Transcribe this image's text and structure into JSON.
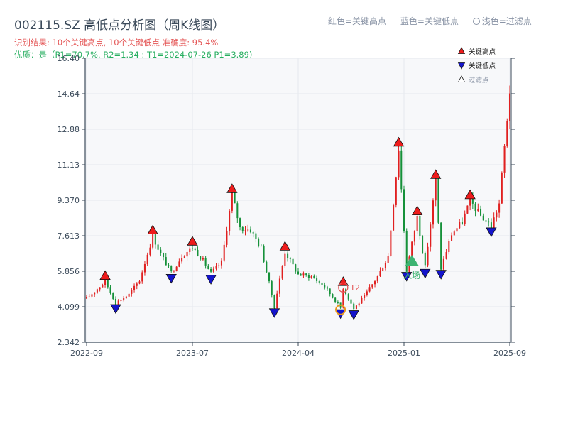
{
  "header": {
    "title": "002115.SZ 高低点分析图（周K线图）",
    "result_line": "识别结果: 10个关键高点, 10个关键低点   准确度: 95.4%",
    "quality_line": "优质：是（P1=70.7%, R2=1.34 ; T1=2024-07-26 P1=3.89)"
  },
  "legend_top": {
    "red": "红色=关键高点",
    "blue": "蓝色=关键低点",
    "light": "浅色=过滤点"
  },
  "legend_inner": {
    "high": "关键高点",
    "low": "关键低点",
    "filtered": "过滤点"
  },
  "annotations": {
    "t2": "T2",
    "entry": "入场"
  },
  "colors": {
    "up": "#e02020",
    "down": "#16913a",
    "high_marker": "#ee1c1c",
    "low_marker": "#1414cc",
    "entry": "#3cb371",
    "t2": "#e45656",
    "orange_ring": "#e8951c",
    "grid": "#e6e9ee",
    "plot_bg": "#f7f8fa"
  },
  "chart_data": {
    "type": "candlestick",
    "title": "002115.SZ 高低点分析图（周K线图）",
    "xlabel": "",
    "ylabel": "",
    "y_ticks": [
      "2.342",
      "4.099",
      "5.856",
      "7.613",
      "9.370",
      "11.13",
      "12.88",
      "14.64",
      "16.40"
    ],
    "ylim": [
      2.342,
      16.4
    ],
    "x_ticks": [
      "2022-09",
      "2023-07",
      "2024-04",
      "2025-01",
      "2025-09"
    ],
    "x_tick_weeks": [
      0,
      40,
      80,
      120,
      160
    ],
    "weeks_total": 161,
    "grid": true,
    "legend_placement": "top-right",
    "series": [
      {
        "name": "关键高点",
        "points": [
          [
            7,
            5.35
          ],
          [
            25,
            7.6
          ],
          [
            40,
            7.05
          ],
          [
            55,
            9.65
          ],
          [
            75,
            6.8
          ],
          [
            97,
            5.05
          ],
          [
            118,
            11.95
          ],
          [
            125,
            8.55
          ],
          [
            132,
            10.35
          ],
          [
            145,
            9.35
          ]
        ]
      },
      {
        "name": "关键低点",
        "points": [
          [
            11,
            4.3
          ],
          [
            32,
            5.8
          ],
          [
            47,
            5.75
          ],
          [
            71,
            4.1
          ],
          [
            96,
            4.05
          ],
          [
            101,
            4.0
          ],
          [
            121,
            5.9
          ],
          [
            128,
            6.05
          ],
          [
            134,
            6.0
          ],
          [
            153,
            8.1
          ]
        ]
      }
    ],
    "entry_week": 123,
    "entry_price": 6.35,
    "t2_week": 97,
    "t2_price": 5.05,
    "orange_ring_week": 96,
    "orange_ring_price": 3.95,
    "keypoints": [
      [
        0,
        4.5
      ],
      [
        7,
        5.35
      ],
      [
        11,
        4.3
      ],
      [
        16,
        4.7
      ],
      [
        20,
        5.4
      ],
      [
        25,
        7.6
      ],
      [
        28,
        6.7
      ],
      [
        32,
        5.8
      ],
      [
        36,
        6.6
      ],
      [
        40,
        7.05
      ],
      [
        44,
        6.4
      ],
      [
        47,
        5.75
      ],
      [
        51,
        6.3
      ],
      [
        55,
        9.65
      ],
      [
        58,
        8.0
      ],
      [
        62,
        7.9
      ],
      [
        66,
        7.0
      ],
      [
        71,
        4.1
      ],
      [
        75,
        6.8
      ],
      [
        80,
        5.7
      ],
      [
        85,
        5.6
      ],
      [
        90,
        5.1
      ],
      [
        96,
        4.05
      ],
      [
        97,
        5.05
      ],
      [
        101,
        4.0
      ],
      [
        105,
        4.6
      ],
      [
        110,
        5.6
      ],
      [
        114,
        6.6
      ],
      [
        118,
        11.95
      ],
      [
        121,
        5.9
      ],
      [
        125,
        8.55
      ],
      [
        128,
        6.05
      ],
      [
        132,
        10.35
      ],
      [
        134,
        6.0
      ],
      [
        138,
        7.7
      ],
      [
        142,
        8.3
      ],
      [
        145,
        9.35
      ],
      [
        149,
        8.6
      ],
      [
        153,
        8.1
      ],
      [
        156,
        9.2
      ],
      [
        158,
        12.0
      ],
      [
        160,
        14.8
      ]
    ]
  }
}
